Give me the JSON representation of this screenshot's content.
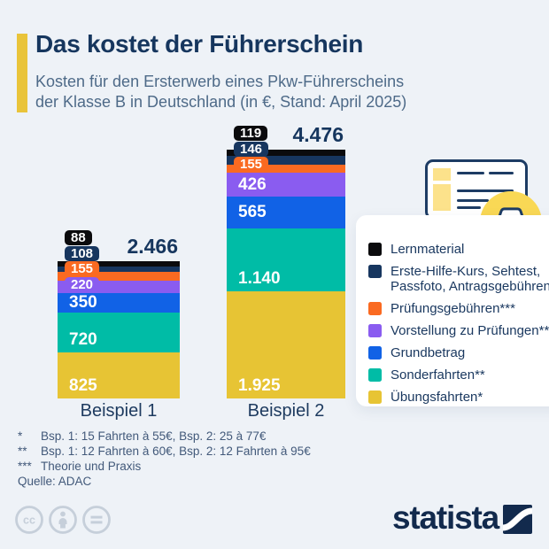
{
  "header": {
    "title": "Das kostet der Führerschein",
    "subtitle_lines": [
      "Kosten für den Ersterwerb eines Pkw-Führerscheins",
      "der Klasse B in Deutschland (in €, Stand: April 2025)"
    ],
    "accent_color": "#e9c43a"
  },
  "chart_data": {
    "type": "bar",
    "stacked": true,
    "unit": "€",
    "categories": [
      "Beispiel 1",
      "Beispiel 2"
    ],
    "totals": [
      2466,
      4476
    ],
    "series": [
      {
        "name": "Lernmaterial",
        "color": "#0b0b0d",
        "values": [
          88,
          119
        ]
      },
      {
        "name": "Erste-Hilfe-Kurs, Sehtest, Passfoto, Antragsgebühren",
        "color": "#17365f",
        "values": [
          108,
          146
        ]
      },
      {
        "name": "Prüfungsgebühren***",
        "color": "#fa6a21",
        "values": [
          155,
          155
        ]
      },
      {
        "name": "Vorstellung zu Prüfungen***",
        "color": "#8a5cf0",
        "values": [
          220,
          426
        ]
      },
      {
        "name": "Grundbetrag",
        "color": "#1162e6",
        "values": [
          350,
          565
        ]
      },
      {
        "name": "Sonderfahrten**",
        "color": "#00bca6",
        "values": [
          720,
          1140
        ]
      },
      {
        "name": "Übungsfahrten*",
        "color": "#e7c434",
        "values": [
          825,
          1925
        ]
      }
    ],
    "legend_position": "right",
    "grid": false
  },
  "footnotes": [
    {
      "marker": "*",
      "text": "Bsp. 1: 15 Fahrten à 55€, Bsp. 2: 25 à 77€"
    },
    {
      "marker": "**",
      "text": "Bsp. 1: 12 Fahrten à 60€, Bsp. 2: 12 Fahrten à 95€"
    },
    {
      "marker": "***",
      "text": "Theorie und Praxis"
    }
  ],
  "source": "Quelle: ADAC",
  "branding": {
    "logo_text": "statista",
    "logo_color": "#122a4d"
  },
  "license_row": [
    "cc-icon",
    "by-person-icon",
    "nd-equals-icon"
  ]
}
